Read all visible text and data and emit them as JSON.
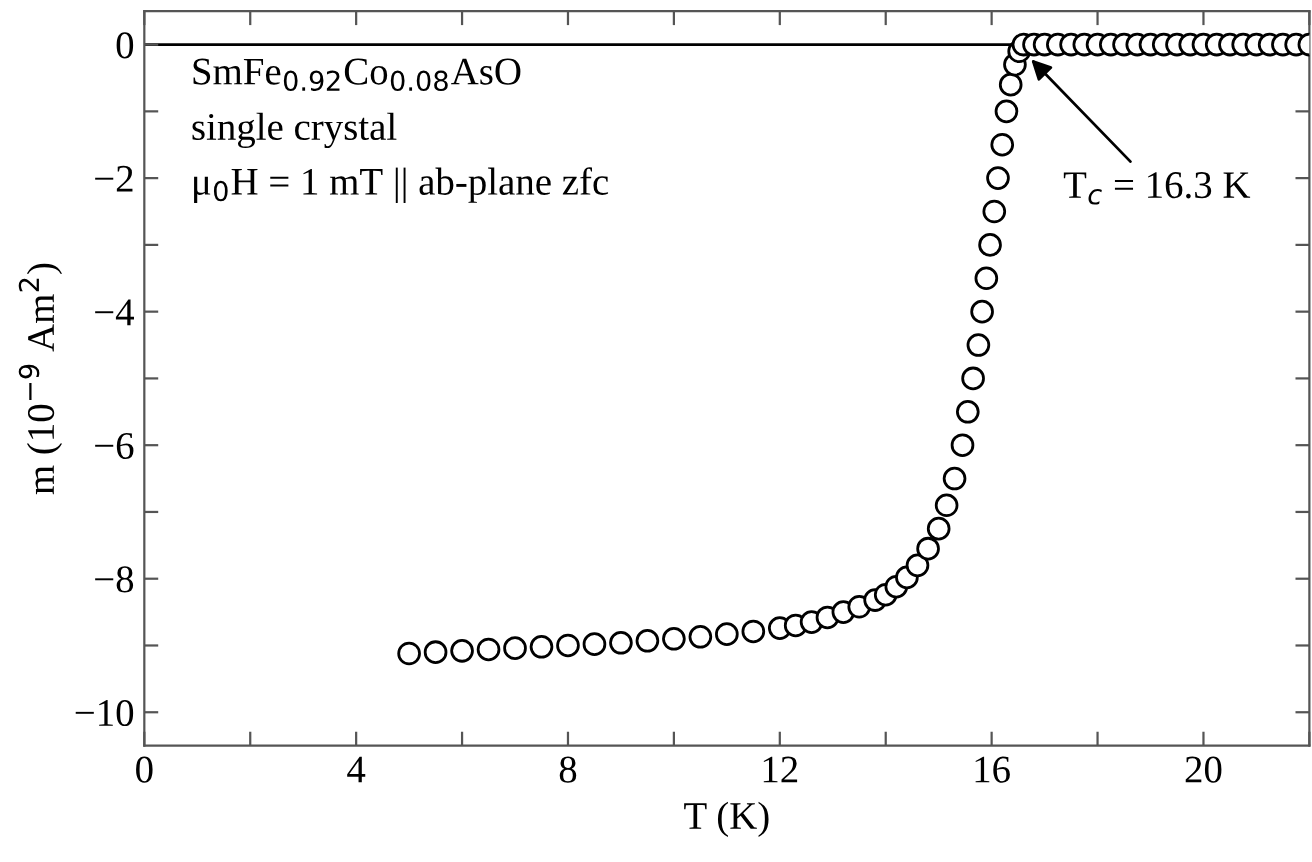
{
  "chart_data": {
    "type": "scatter",
    "xlabel": "T (K)",
    "ylabel": "m (10$^{−9}$ Am$^{2}$)",
    "xlim": [
      0,
      22
    ],
    "ylim": [
      -10.5,
      0.5
    ],
    "xticks": [
      0,
      {
        "value": 2,
        "label": null
      },
      4,
      {
        "value": 6,
        "label": null
      },
      8,
      {
        "value": 10,
        "label": null
      },
      12,
      {
        "value": 14,
        "label": null
      },
      16,
      {
        "value": 18,
        "label": null
      },
      20,
      {
        "value": 22,
        "label": null
      }
    ],
    "yticks": [
      {
        "value": -10,
        "label": "−10"
      },
      {
        "value": -9,
        "label": null
      },
      {
        "value": -8,
        "label": "−8"
      },
      {
        "value": -7,
        "label": null
      },
      {
        "value": -6,
        "label": "−6"
      },
      {
        "value": -5,
        "label": null
      },
      {
        "value": -4,
        "label": "−4"
      },
      {
        "value": -3,
        "label": null
      },
      {
        "value": -2,
        "label": "−2"
      },
      {
        "value": -1,
        "label": null
      },
      0
    ],
    "grid": false,
    "marker": "circle",
    "ref_lines": [
      {
        "axis": "y",
        "value": 0,
        "color": "#000000"
      }
    ],
    "annotations": [
      "SmFe$_{0.92}$Co$_{0.08}$AsO",
      "single crystal",
      "μ$_{0}$H = 1 mT || ab-plane zfc",
      {
        "text": "T$_{c}$ = 16.3 K",
        "x": 16.6,
        "y": -0.1
      }
    ],
    "series": [
      {
        "color": "#000000",
        "x": [
          5.0,
          5.5,
          6.0,
          6.5,
          7.0,
          7.5,
          8.0,
          8.5,
          9.0,
          9.5,
          10.0,
          10.5,
          11.0,
          11.5,
          12.0,
          12.3,
          12.6,
          12.9,
          13.2,
          13.5,
          13.8,
          14.0,
          14.2,
          14.4,
          14.6,
          14.8,
          15.0,
          15.15,
          15.3,
          15.45,
          15.55,
          15.65,
          15.75,
          15.82,
          15.9,
          15.97,
          16.05,
          16.12,
          16.2,
          16.28,
          16.36,
          16.44,
          16.52,
          16.6,
          16.8,
          17.0,
          17.25,
          17.5,
          17.75,
          18.0,
          18.25,
          18.5,
          18.75,
          19.0,
          19.25,
          19.5,
          19.75,
          20.0,
          20.25,
          20.5,
          20.75,
          21.0,
          21.25,
          21.5,
          21.75,
          22.0
        ],
        "values": [
          -9.12,
          -9.1,
          -9.08,
          -9.06,
          -9.04,
          -9.02,
          -9.0,
          -8.98,
          -8.96,
          -8.93,
          -8.9,
          -8.87,
          -8.83,
          -8.79,
          -8.74,
          -8.7,
          -8.65,
          -8.58,
          -8.5,
          -8.42,
          -8.32,
          -8.24,
          -8.12,
          -7.98,
          -7.8,
          -7.55,
          -7.25,
          -6.9,
          -6.5,
          -6.0,
          -5.5,
          -5.0,
          -4.5,
          -4.0,
          -3.5,
          -3.0,
          -2.5,
          -2.0,
          -1.5,
          -1.0,
          -0.6,
          -0.3,
          -0.1,
          0,
          0,
          0,
          0,
          0,
          0,
          0,
          0,
          0,
          0,
          0,
          0,
          0,
          0,
          0,
          0,
          0,
          0,
          0,
          0,
          0,
          0,
          0
        ]
      }
    ]
  }
}
